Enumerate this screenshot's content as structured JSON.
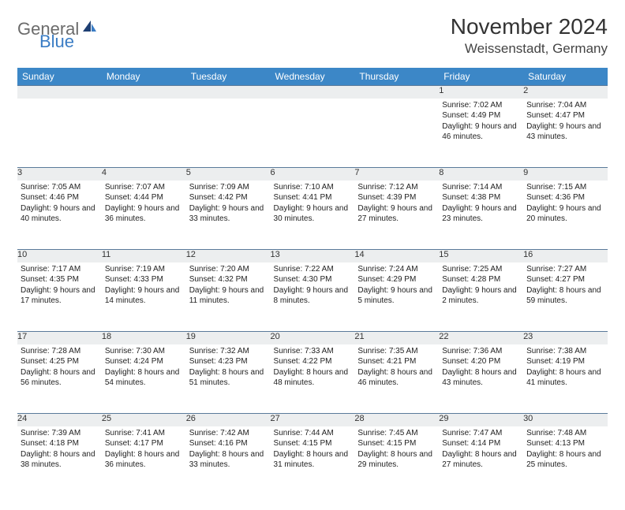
{
  "brand": {
    "part1": "General",
    "part2": "Blue"
  },
  "title": "November 2024",
  "location": "Weissenstadt, Germany",
  "colors": {
    "header_bg": "#3c87c7",
    "header_text": "#ffffff",
    "daynum_bg": "#eceeef",
    "border": "#5a7a9a",
    "brand_gray": "#6b6b6b",
    "brand_blue": "#3a7cc4",
    "page_bg": "#ffffff"
  },
  "days_of_week": [
    "Sunday",
    "Monday",
    "Tuesday",
    "Wednesday",
    "Thursday",
    "Friday",
    "Saturday"
  ],
  "weeks": [
    [
      {
        "n": "",
        "sr": "",
        "ss": "",
        "dl": ""
      },
      {
        "n": "",
        "sr": "",
        "ss": "",
        "dl": ""
      },
      {
        "n": "",
        "sr": "",
        "ss": "",
        "dl": ""
      },
      {
        "n": "",
        "sr": "",
        "ss": "",
        "dl": ""
      },
      {
        "n": "",
        "sr": "",
        "ss": "",
        "dl": ""
      },
      {
        "n": "1",
        "sr": "Sunrise: 7:02 AM",
        "ss": "Sunset: 4:49 PM",
        "dl": "Daylight: 9 hours and 46 minutes."
      },
      {
        "n": "2",
        "sr": "Sunrise: 7:04 AM",
        "ss": "Sunset: 4:47 PM",
        "dl": "Daylight: 9 hours and 43 minutes."
      }
    ],
    [
      {
        "n": "3",
        "sr": "Sunrise: 7:05 AM",
        "ss": "Sunset: 4:46 PM",
        "dl": "Daylight: 9 hours and 40 minutes."
      },
      {
        "n": "4",
        "sr": "Sunrise: 7:07 AM",
        "ss": "Sunset: 4:44 PM",
        "dl": "Daylight: 9 hours and 36 minutes."
      },
      {
        "n": "5",
        "sr": "Sunrise: 7:09 AM",
        "ss": "Sunset: 4:42 PM",
        "dl": "Daylight: 9 hours and 33 minutes."
      },
      {
        "n": "6",
        "sr": "Sunrise: 7:10 AM",
        "ss": "Sunset: 4:41 PM",
        "dl": "Daylight: 9 hours and 30 minutes."
      },
      {
        "n": "7",
        "sr": "Sunrise: 7:12 AM",
        "ss": "Sunset: 4:39 PM",
        "dl": "Daylight: 9 hours and 27 minutes."
      },
      {
        "n": "8",
        "sr": "Sunrise: 7:14 AM",
        "ss": "Sunset: 4:38 PM",
        "dl": "Daylight: 9 hours and 23 minutes."
      },
      {
        "n": "9",
        "sr": "Sunrise: 7:15 AM",
        "ss": "Sunset: 4:36 PM",
        "dl": "Daylight: 9 hours and 20 minutes."
      }
    ],
    [
      {
        "n": "10",
        "sr": "Sunrise: 7:17 AM",
        "ss": "Sunset: 4:35 PM",
        "dl": "Daylight: 9 hours and 17 minutes."
      },
      {
        "n": "11",
        "sr": "Sunrise: 7:19 AM",
        "ss": "Sunset: 4:33 PM",
        "dl": "Daylight: 9 hours and 14 minutes."
      },
      {
        "n": "12",
        "sr": "Sunrise: 7:20 AM",
        "ss": "Sunset: 4:32 PM",
        "dl": "Daylight: 9 hours and 11 minutes."
      },
      {
        "n": "13",
        "sr": "Sunrise: 7:22 AM",
        "ss": "Sunset: 4:30 PM",
        "dl": "Daylight: 9 hours and 8 minutes."
      },
      {
        "n": "14",
        "sr": "Sunrise: 7:24 AM",
        "ss": "Sunset: 4:29 PM",
        "dl": "Daylight: 9 hours and 5 minutes."
      },
      {
        "n": "15",
        "sr": "Sunrise: 7:25 AM",
        "ss": "Sunset: 4:28 PM",
        "dl": "Daylight: 9 hours and 2 minutes."
      },
      {
        "n": "16",
        "sr": "Sunrise: 7:27 AM",
        "ss": "Sunset: 4:27 PM",
        "dl": "Daylight: 8 hours and 59 minutes."
      }
    ],
    [
      {
        "n": "17",
        "sr": "Sunrise: 7:28 AM",
        "ss": "Sunset: 4:25 PM",
        "dl": "Daylight: 8 hours and 56 minutes."
      },
      {
        "n": "18",
        "sr": "Sunrise: 7:30 AM",
        "ss": "Sunset: 4:24 PM",
        "dl": "Daylight: 8 hours and 54 minutes."
      },
      {
        "n": "19",
        "sr": "Sunrise: 7:32 AM",
        "ss": "Sunset: 4:23 PM",
        "dl": "Daylight: 8 hours and 51 minutes."
      },
      {
        "n": "20",
        "sr": "Sunrise: 7:33 AM",
        "ss": "Sunset: 4:22 PM",
        "dl": "Daylight: 8 hours and 48 minutes."
      },
      {
        "n": "21",
        "sr": "Sunrise: 7:35 AM",
        "ss": "Sunset: 4:21 PM",
        "dl": "Daylight: 8 hours and 46 minutes."
      },
      {
        "n": "22",
        "sr": "Sunrise: 7:36 AM",
        "ss": "Sunset: 4:20 PM",
        "dl": "Daylight: 8 hours and 43 minutes."
      },
      {
        "n": "23",
        "sr": "Sunrise: 7:38 AM",
        "ss": "Sunset: 4:19 PM",
        "dl": "Daylight: 8 hours and 41 minutes."
      }
    ],
    [
      {
        "n": "24",
        "sr": "Sunrise: 7:39 AM",
        "ss": "Sunset: 4:18 PM",
        "dl": "Daylight: 8 hours and 38 minutes."
      },
      {
        "n": "25",
        "sr": "Sunrise: 7:41 AM",
        "ss": "Sunset: 4:17 PM",
        "dl": "Daylight: 8 hours and 36 minutes."
      },
      {
        "n": "26",
        "sr": "Sunrise: 7:42 AM",
        "ss": "Sunset: 4:16 PM",
        "dl": "Daylight: 8 hours and 33 minutes."
      },
      {
        "n": "27",
        "sr": "Sunrise: 7:44 AM",
        "ss": "Sunset: 4:15 PM",
        "dl": "Daylight: 8 hours and 31 minutes."
      },
      {
        "n": "28",
        "sr": "Sunrise: 7:45 AM",
        "ss": "Sunset: 4:15 PM",
        "dl": "Daylight: 8 hours and 29 minutes."
      },
      {
        "n": "29",
        "sr": "Sunrise: 7:47 AM",
        "ss": "Sunset: 4:14 PM",
        "dl": "Daylight: 8 hours and 27 minutes."
      },
      {
        "n": "30",
        "sr": "Sunrise: 7:48 AM",
        "ss": "Sunset: 4:13 PM",
        "dl": "Daylight: 8 hours and 25 minutes."
      }
    ]
  ]
}
